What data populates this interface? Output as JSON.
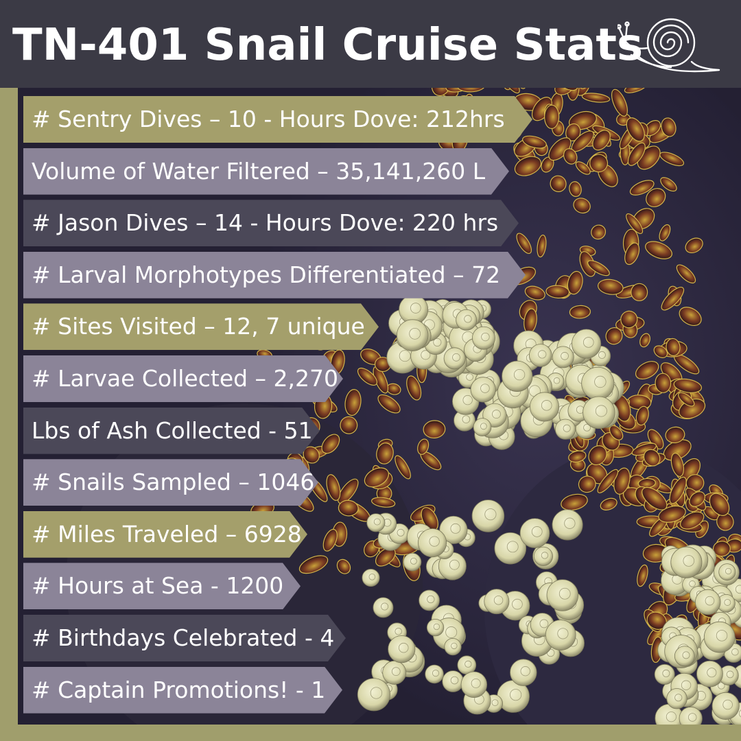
{
  "header": {
    "title": "TN-401 Snail Cruise Stats",
    "icon": "snail-icon"
  },
  "colors": {
    "header_bg": "#3b3a45",
    "olive": "#a49f6b",
    "lavender": "#8b8498",
    "dark_purple": "#4b4858",
    "frame": "#a09e6c"
  },
  "photo": {
    "subject": "deep-sea hydrothermal vent mussels and snails",
    "icon": "vent-photo"
  },
  "stats": [
    {
      "label": "# Sentry Dives – 10 - Hours Dove: 212hrs",
      "color": "olive"
    },
    {
      "label": "Volume of Water Filtered – 35,141,260 L",
      "color": "lavender"
    },
    {
      "label": "# Jason Dives – 14 - Hours Dove: 220 hrs",
      "color": "dark_purple"
    },
    {
      "label": "# Larval Morphotypes Differentiated – 72",
      "color": "lavender"
    },
    {
      "label": "# Sites Visited – 12, 7 unique",
      "color": "olive"
    },
    {
      "label": "# Larvae Collected – 2,270",
      "color": "lavender"
    },
    {
      "label": "Lbs of Ash Collected - 51",
      "color": "dark_purple"
    },
    {
      "label": "# Snails Sampled – 1046",
      "color": "lavender"
    },
    {
      "label": "# Miles Traveled – 6928",
      "color": "olive"
    },
    {
      "label": "# Hours at Sea - 1200",
      "color": "lavender"
    },
    {
      "label": "# Birthdays Celebrated - 4",
      "color": "dark_purple"
    },
    {
      "label": "# Captain Promotions! - 1",
      "color": "lavender"
    }
  ]
}
